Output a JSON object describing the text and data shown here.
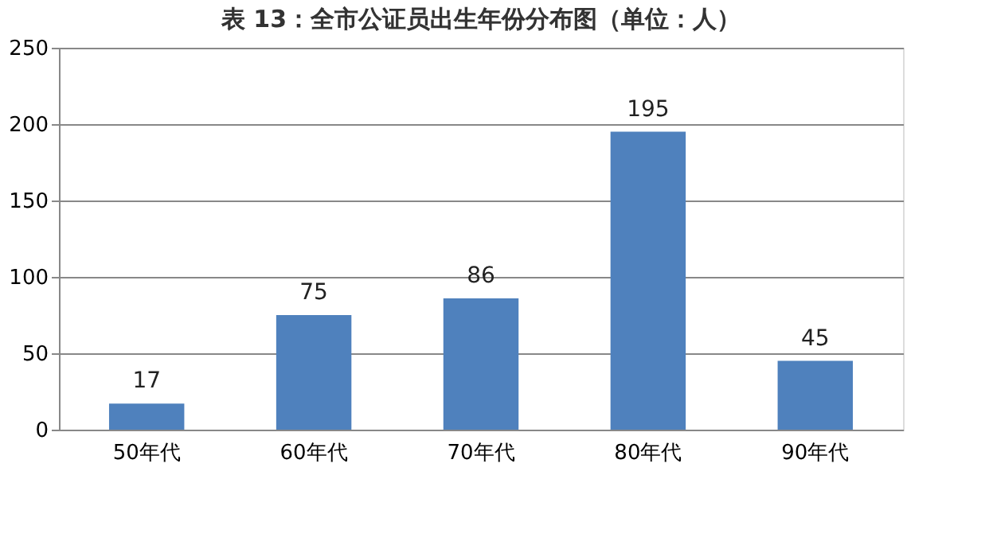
{
  "chart_data": {
    "type": "bar",
    "title": "表 13：全市公证员出生年份分布图（单位：人）",
    "categories": [
      "50年代",
      "60年代",
      "70年代",
      "80年代",
      "90年代"
    ],
    "values": [
      17,
      75,
      86,
      195,
      45
    ],
    "color": "#4f81bd",
    "ylim": [
      0,
      250
    ],
    "yticks": [
      0,
      50,
      100,
      150,
      200,
      250
    ],
    "grid": "y",
    "data_labels": true
  }
}
